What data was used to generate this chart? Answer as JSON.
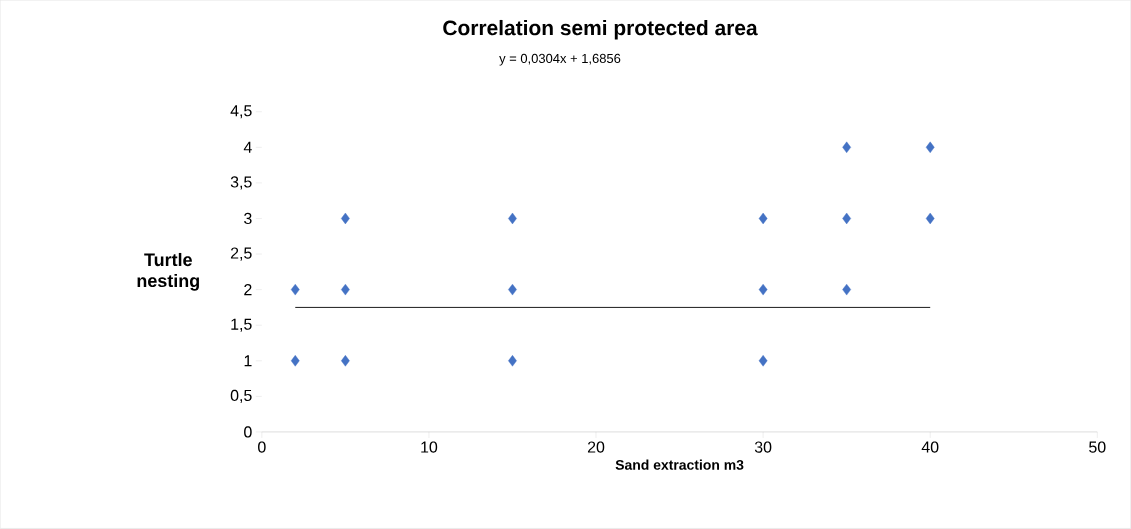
{
  "chart_data": {
    "type": "scatter",
    "title": "Correlation semi protected area",
    "subtitle": "y = 0,0304x + 1,6856",
    "xlabel": "Sand extraction m3",
    "ylabel": "Turtle nesting",
    "xlim": [
      0,
      50
    ],
    "xticks": [
      0,
      10,
      20,
      30,
      40,
      50
    ],
    "ylim": [
      0,
      4.5
    ],
    "yticks": [
      0,
      {
        "value": 0.5,
        "label": "0,5"
      },
      1,
      {
        "value": 1.5,
        "label": "1,5"
      },
      2,
      {
        "value": 2.5,
        "label": "2,5"
      },
      3,
      {
        "value": 3.5,
        "label": "3,5"
      },
      4,
      {
        "value": 4.5,
        "label": "4,5"
      }
    ],
    "series": [
      {
        "color": "#4472c4",
        "marker": "diamond",
        "x": [
          2,
          2,
          5,
          5,
          5,
          15,
          15,
          15,
          30,
          30,
          30,
          35,
          35,
          35,
          40,
          40
        ],
        "values": [
          2,
          1,
          3,
          2,
          1,
          3,
          2,
          1,
          3,
          2,
          1,
          4,
          3,
          2,
          4,
          3
        ]
      },
      {
        "type": "line",
        "color": "#000000",
        "x": [
          2,
          40
        ],
        "values": [
          1.75,
          1.75
        ]
      }
    ]
  }
}
